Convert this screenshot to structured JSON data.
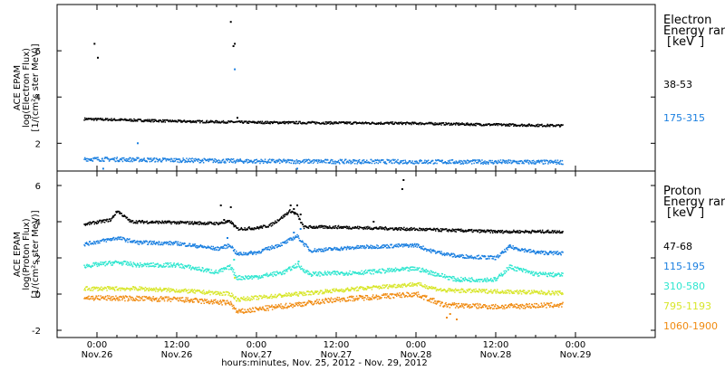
{
  "chart_data": [
    {
      "type": "scatter",
      "panel": "electron",
      "ylabel_lines": [
        "ACE EPAM",
        "log(Electron Flux)",
        "[1/(cm²s ster MeV)]"
      ],
      "ylim": [
        0.8,
        8.0
      ],
      "yticks": [
        2,
        4,
        6
      ],
      "xlim": [
        -6,
        84
      ],
      "legend_title_lines": [
        "Electron",
        "Energy range",
        "[keV]"
      ],
      "series": [
        {
          "name": "38-53",
          "color": "#000000",
          "baseline": [
            [
              -2,
              3.05
            ],
            [
              12,
              2.95
            ],
            [
              24,
              2.9
            ],
            [
              36,
              2.88
            ],
            [
              48,
              2.86
            ],
            [
              60,
              2.8
            ],
            [
              70,
              2.76
            ]
          ],
          "noise": 0.05,
          "spikes": [
            [
              -0.5,
              6.3
            ],
            [
              0,
              5.7
            ],
            [
              20,
              7.25
            ],
            [
              20.4,
              6.2
            ],
            [
              20.6,
              6.3
            ],
            [
              21,
              3.1
            ]
          ]
        },
        {
          "name": "175-315",
          "color": "#1a7fe0",
          "baseline": [
            [
              -2,
              1.32
            ],
            [
              24,
              1.22
            ],
            [
              48,
              1.2
            ],
            [
              70,
              1.18
            ]
          ],
          "noise": 0.09,
          "spikes": [
            [
              6,
              2.0
            ],
            [
              20.6,
              5.2
            ],
            [
              0.8,
              0.9
            ],
            [
              30,
              0.9
            ]
          ]
        }
      ]
    },
    {
      "type": "scatter",
      "panel": "proton",
      "ylabel_lines": [
        "ACE EPAM",
        "log(Proton Flux)",
        "[1/(cm²s ster MeV)]"
      ],
      "ylim": [
        -2.4,
        6.8
      ],
      "yticks": [
        -2,
        0,
        2,
        4,
        6
      ],
      "xlim": [
        -6,
        84
      ],
      "legend_title_lines": [
        "Proton",
        "Energy range",
        "[keV]"
      ],
      "series": [
        {
          "name": "47-68",
          "color": "#000000",
          "baseline": [
            [
              -2,
              3.85
            ],
            [
              2,
              4.1
            ],
            [
              3,
              4.6
            ],
            [
              5,
              4.0
            ],
            [
              12,
              3.95
            ],
            [
              18,
              3.9
            ],
            [
              20,
              4.0
            ],
            [
              21,
              3.6
            ],
            [
              24,
              3.65
            ],
            [
              26,
              3.8
            ],
            [
              28,
              4.3
            ],
            [
              29,
              4.6
            ],
            [
              30,
              4.4
            ],
            [
              31,
              3.7
            ],
            [
              36,
              3.7
            ],
            [
              46,
              3.6
            ],
            [
              60,
              3.45
            ],
            [
              70,
              3.45
            ]
          ],
          "noise": 0.08,
          "spikes": [
            [
              18.5,
              4.9
            ],
            [
              19.0,
              4.1
            ],
            [
              20.0,
              4.8
            ],
            [
              20.3,
              3.9
            ],
            [
              29.0,
              4.9
            ],
            [
              29.5,
              4.7
            ],
            [
              30.0,
              4.9
            ],
            [
              30.5,
              4.4
            ],
            [
              41.5,
              4.0
            ],
            [
              46.0,
              6.3
            ],
            [
              45.8,
              5.8
            ]
          ]
        },
        {
          "name": "115-195",
          "color": "#1a7fe0",
          "baseline": [
            [
              -2,
              2.75
            ],
            [
              3,
              3.1
            ],
            [
              6,
              2.85
            ],
            [
              12,
              2.8
            ],
            [
              18,
              2.5
            ],
            [
              20,
              2.7
            ],
            [
              21,
              2.2
            ],
            [
              24,
              2.3
            ],
            [
              28,
              2.8
            ],
            [
              30,
              3.2
            ],
            [
              32,
              2.4
            ],
            [
              40,
              2.6
            ],
            [
              48,
              2.7
            ],
            [
              50,
              2.4
            ],
            [
              54,
              2.1
            ],
            [
              60,
              2.0
            ],
            [
              62,
              2.6
            ],
            [
              66,
              2.3
            ],
            [
              70,
              2.25
            ]
          ],
          "noise": 0.1,
          "spikes": [
            [
              29.5,
              3.4
            ],
            [
              30.5,
              3.6
            ],
            [
              19.5,
              3.1
            ],
            [
              62.0,
              2.7
            ]
          ]
        },
        {
          "name": "310-580",
          "color": "#2ee6cf",
          "baseline": [
            [
              -2,
              1.55
            ],
            [
              3,
              1.75
            ],
            [
              6,
              1.6
            ],
            [
              12,
              1.6
            ],
            [
              18,
              1.2
            ],
            [
              20,
              1.5
            ],
            [
              21,
              0.9
            ],
            [
              24,
              0.95
            ],
            [
              28,
              1.2
            ],
            [
              30,
              1.6
            ],
            [
              32,
              1.1
            ],
            [
              40,
              1.2
            ],
            [
              48,
              1.4
            ],
            [
              50,
              1.2
            ],
            [
              54,
              0.8
            ],
            [
              60,
              0.8
            ],
            [
              62,
              1.5
            ],
            [
              66,
              1.1
            ],
            [
              70,
              1.05
            ]
          ],
          "noise": 0.12,
          "spikes": [
            [
              20.5,
              1.9
            ],
            [
              30.2,
              1.8
            ]
          ]
        },
        {
          "name": "795-1193",
          "color": "#d8e62a",
          "baseline": [
            [
              -2,
              0.3
            ],
            [
              6,
              0.3
            ],
            [
              12,
              0.2
            ],
            [
              20,
              0.0
            ],
            [
              21,
              -0.3
            ],
            [
              24,
              -0.2
            ],
            [
              36,
              0.2
            ],
            [
              48,
              0.55
            ],
            [
              52,
              0.2
            ],
            [
              60,
              0.15
            ],
            [
              70,
              0.05
            ]
          ],
          "noise": 0.11,
          "spikes": [
            [
              20.6,
              0.9
            ]
          ]
        },
        {
          "name": "1060-1900",
          "color": "#f08a10",
          "baseline": [
            [
              -2,
              -0.2
            ],
            [
              6,
              -0.25
            ],
            [
              12,
              -0.3
            ],
            [
              20,
              -0.5
            ],
            [
              21,
              -1.0
            ],
            [
              24,
              -0.85
            ],
            [
              36,
              -0.3
            ],
            [
              48,
              0.0
            ],
            [
              52,
              -0.6
            ],
            [
              60,
              -0.7
            ],
            [
              70,
              -0.6
            ]
          ],
          "noise": 0.14,
          "spikes": [
            [
              52.5,
              -1.3
            ],
            [
              53.0,
              -1.1
            ],
            [
              54.0,
              -1.4
            ]
          ]
        }
      ]
    }
  ],
  "x_axis": {
    "ticks": [
      {
        "x": 0,
        "time": "0:00",
        "date": "Nov.26"
      },
      {
        "x": 12,
        "time": "12:00",
        "date": "Nov.26"
      },
      {
        "x": 24,
        "time": "0:00",
        "date": "Nov.27"
      },
      {
        "x": 36,
        "time": "12:00",
        "date": "Nov.27"
      },
      {
        "x": 48,
        "time": "0:00",
        "date": "Nov.28"
      },
      {
        "x": 60,
        "time": "12:00",
        "date": "Nov.28"
      },
      {
        "x": 72,
        "time": "0:00",
        "date": "Nov.29"
      }
    ],
    "xlabel": "hours:minutes, Nov. 25, 2012 - Nov. 29, 2012"
  }
}
